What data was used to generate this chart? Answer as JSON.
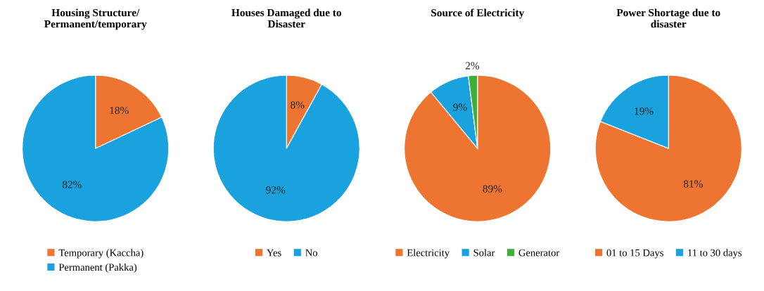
{
  "chart_data": [
    {
      "type": "pie",
      "title": "Housing Structure/\nPermanent/temporary",
      "categories": [
        "Temporary (Kaccha)",
        "Permanent (Pakka)"
      ],
      "values": [
        18,
        82
      ],
      "value_labels": [
        "18%",
        "82%"
      ],
      "colors": [
        "#ee7531",
        "#19a2dd"
      ],
      "legend": "bottom"
    },
    {
      "type": "pie",
      "title": "Houses Damaged due to\nDisaster",
      "categories": [
        "Yes",
        "No"
      ],
      "values": [
        8,
        92
      ],
      "value_labels": [
        "8%",
        "92%"
      ],
      "colors": [
        "#ee7531",
        "#19a2dd"
      ],
      "legend": "bottom"
    },
    {
      "type": "pie",
      "title": "Source of Electricity",
      "categories": [
        "Electricity",
        "Solar",
        "Generator"
      ],
      "values": [
        89,
        9,
        2
      ],
      "value_labels": [
        "89%",
        "9%",
        "2%"
      ],
      "colors": [
        "#ee7531",
        "#19a2dd",
        "#3fae3a"
      ],
      "legend": "bottom"
    },
    {
      "type": "pie",
      "title": "Power Shortage due to\ndisaster",
      "categories": [
        "01 to 15 Days",
        "11 to 30 days"
      ],
      "values": [
        81,
        19
      ],
      "value_labels": [
        "81%",
        "19%"
      ],
      "colors": [
        "#ee7531",
        "#19a2dd"
      ],
      "legend": "bottom"
    }
  ]
}
